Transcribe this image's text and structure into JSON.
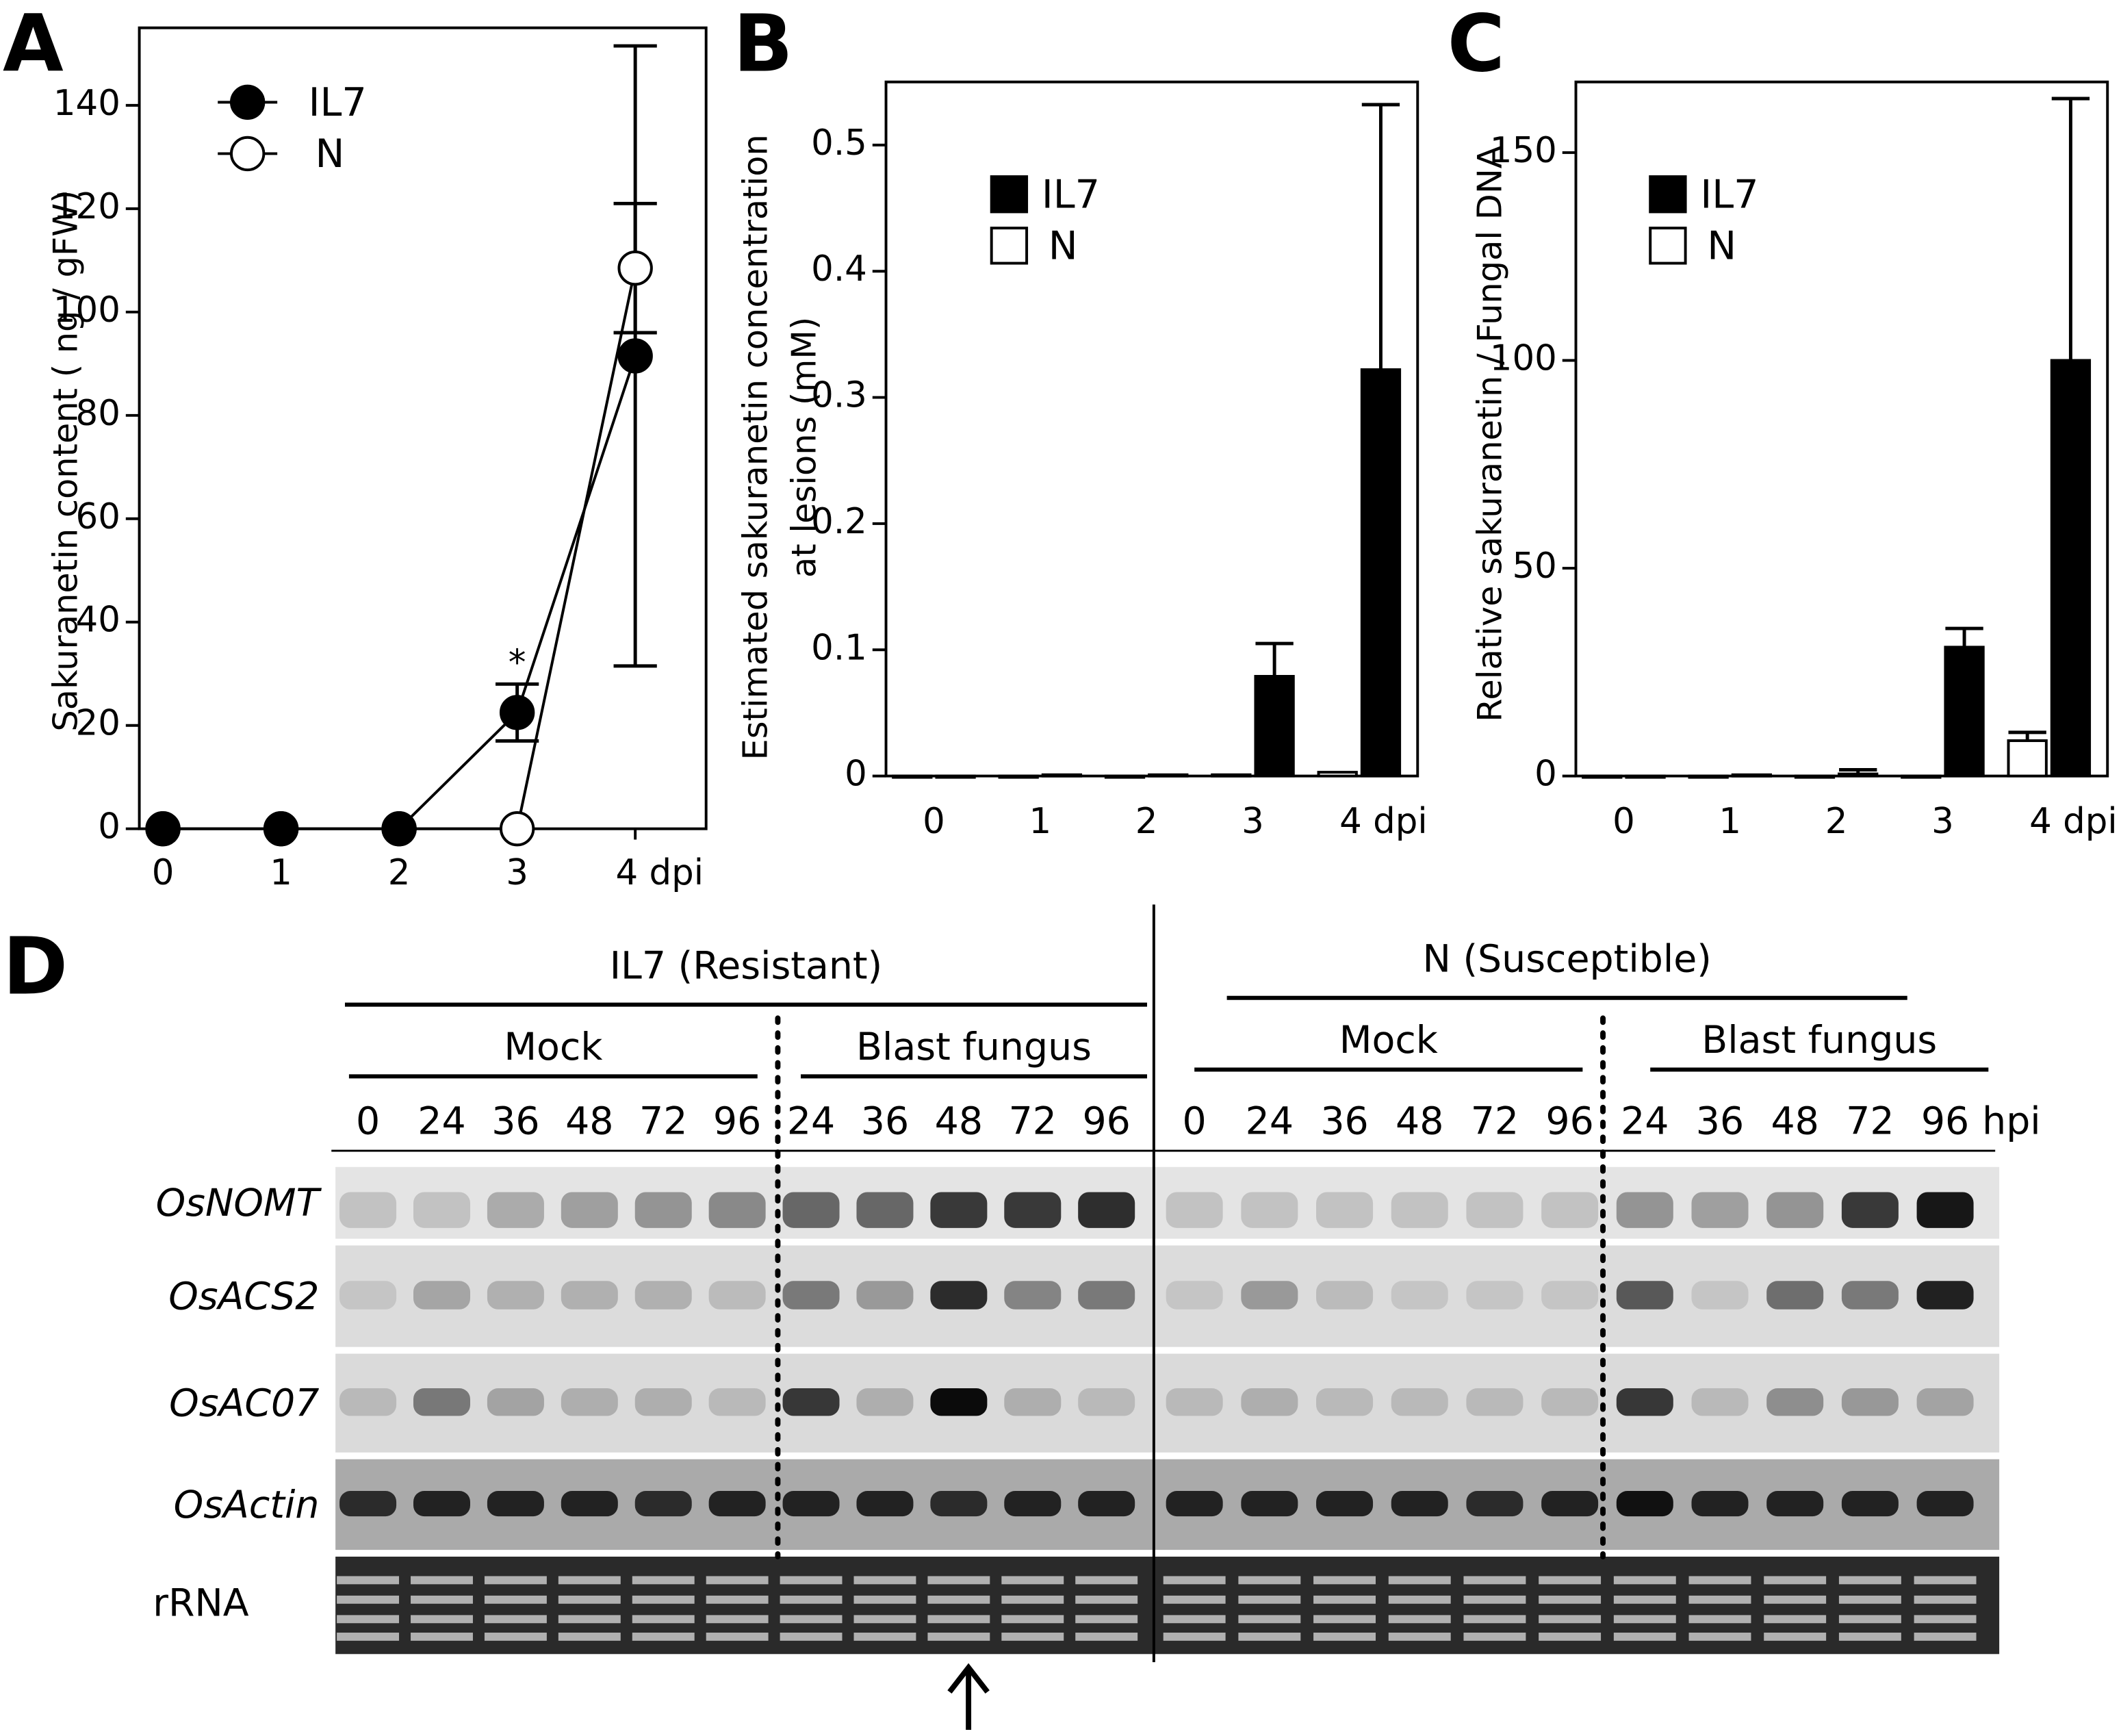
{
  "chart_data": [
    {
      "type": "line",
      "label": "A",
      "ylabel": "Sakuranetin content ( ng / gFW)",
      "x": [
        0,
        1,
        2,
        3,
        4
      ],
      "xlim": [
        -0.2,
        4.6
      ],
      "xticks": [
        0,
        1,
        2,
        3,
        {
          "value": 4,
          "label": "4 dpi"
        }
      ],
      "ylim": [
        0,
        155
      ],
      "yticks": [
        0,
        20,
        40,
        60,
        80,
        100,
        120,
        140
      ],
      "legend": "upper left",
      "annotation": "*",
      "annotation_x": 3,
      "series": [
        {
          "name": "IL7",
          "color": "#000000",
          "values": [
            0,
            0,
            0,
            22.5,
            91.5
          ],
          "errors": [
            0,
            0,
            0,
            5.5,
            60
          ]
        },
        {
          "name": "N",
          "color": "#ffffff",
          "values": [
            0,
            0,
            0,
            0,
            108.5
          ],
          "errors": [
            0,
            0,
            0,
            0,
            12.5
          ]
        }
      ]
    },
    {
      "type": "bar",
      "label": "B",
      "ylabel": [
        "Estimated sakuranetin concentration",
        "at lesions  (mM)"
      ],
      "categories": [
        "0",
        "1",
        "2",
        "3",
        "4 dpi"
      ],
      "ylim": [
        0,
        0.55
      ],
      "yticks": [
        0,
        0.1,
        0.2,
        0.3,
        0.4,
        0.5
      ],
      "legend": "upper left",
      "series": [
        {
          "name": "IL7",
          "color": "#000000",
          "values": [
            0,
            0.001,
            0.001,
            0.079,
            0.322
          ],
          "errors": [
            0,
            0,
            0,
            0.026,
            0.21
          ]
        },
        {
          "name": "N",
          "color": "#ffffff",
          "values": [
            0,
            0,
            0,
            0.001,
            0.003
          ],
          "errors": [
            0,
            0,
            0,
            0,
            0
          ]
        }
      ]
    },
    {
      "type": "bar",
      "label": "C",
      "ylabel": [
        "Relative sakuranetin / Fungal DNA"
      ],
      "categories": [
        "0",
        "1",
        "2",
        "3",
        "4 dpi"
      ],
      "ylim": [
        0,
        167
      ],
      "yticks": [
        0,
        50,
        100,
        150
      ],
      "legend": "upper left",
      "series": [
        {
          "name": "IL7",
          "color": "#000000",
          "values": [
            0,
            0.3,
            0.5,
            31,
            100
          ],
          "errors": [
            0,
            0,
            1,
            4.5,
            63
          ]
        },
        {
          "name": "N",
          "color": "#ffffff",
          "values": [
            0,
            0,
            0,
            0,
            8.5
          ],
          "errors": [
            0,
            0,
            0,
            0,
            2
          ]
        }
      ]
    }
  ],
  "blot": {
    "label": "D",
    "unit": "hpi",
    "groups": [
      {
        "name": "IL7 (Resistant)",
        "treatments": [
          {
            "name": "Mock",
            "lanes": [
              "0",
              "24",
              "36",
              "48",
              "72",
              "96"
            ]
          },
          {
            "name": "Blast fungus",
            "lanes": [
              "24",
              "36",
              "48",
              "72",
              "96"
            ]
          }
        ]
      },
      {
        "name": "N (Susceptible)",
        "treatments": [
          {
            "name": "Mock",
            "lanes": [
              "0",
              "24",
              "36",
              "48",
              "72",
              "96"
            ]
          },
          {
            "name": "Blast fungus",
            "lanes": [
              "24",
              "36",
              "48",
              "72",
              "96"
            ]
          }
        ]
      }
    ],
    "rows": [
      "OsNOMT",
      "OsACS2",
      "OsAC07",
      "OsActin",
      "rRNA"
    ]
  }
}
